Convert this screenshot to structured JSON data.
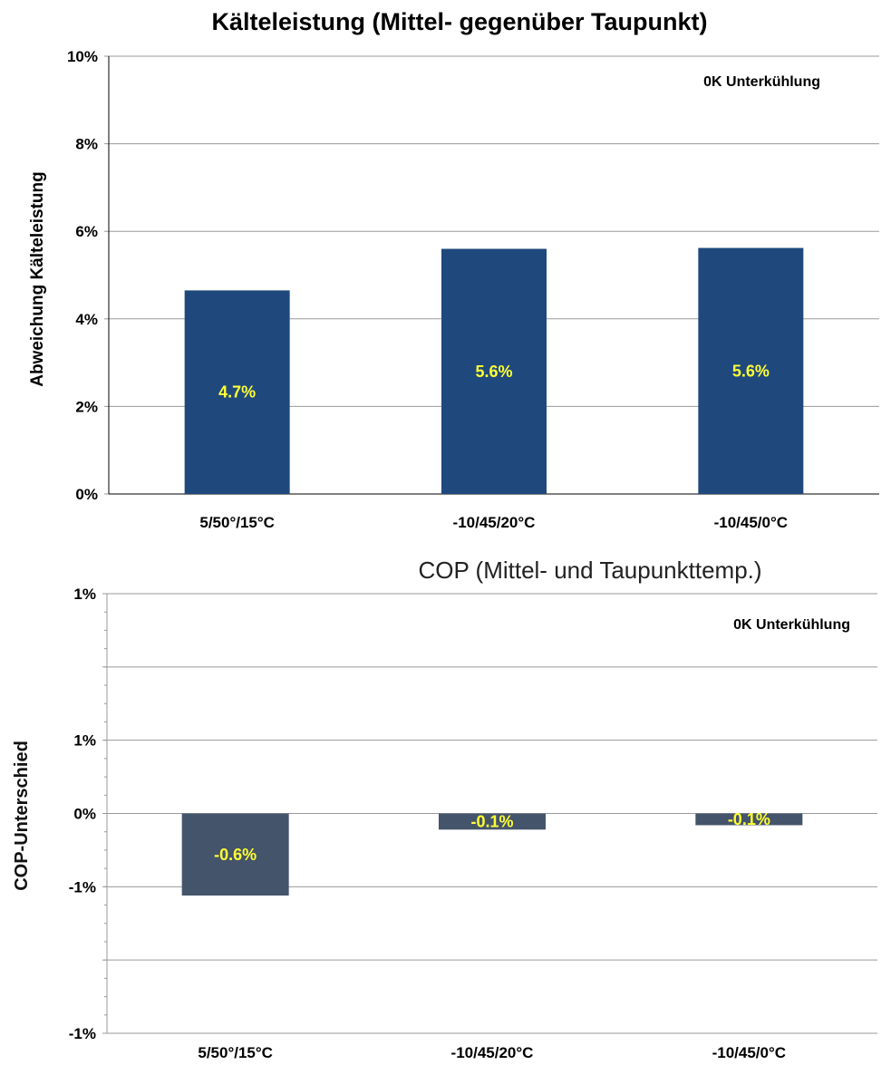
{
  "chart_data": [
    {
      "type": "bar",
      "title": "Kälteleistung (Mittel- gegenüber Taupunkt)",
      "ylabel": "Abweichung Kälteleistung",
      "xlabel": "",
      "annotation": "0K Unterkühlung",
      "categories": [
        "5/50°/15°C",
        "-10/45/20°C",
        "-10/45/0°C"
      ],
      "values": [
        4.65,
        5.6,
        5.62
      ],
      "data_labels": [
        "4.7%",
        "5.6%",
        "5.6%"
      ],
      "ylim": [
        0,
        10
      ],
      "yticks": [
        0,
        2,
        4,
        6,
        8,
        10
      ],
      "ytick_labels": [
        "0%",
        "2%",
        "4%",
        "6%",
        "8%",
        "10%"
      ],
      "grid": true,
      "bar_color": "#1f497d",
      "label_color": "#ffff33"
    },
    {
      "type": "bar",
      "title": "COP (Mittel- und Taupunkttemp.)",
      "ylabel": "COP-Unterschied",
      "xlabel": "",
      "annotation": "0K Unterkühlung",
      "categories": [
        "5/50°/15°C",
        "-10/45/20°C",
        "-10/45/0°C"
      ],
      "values": [
        -0.56,
        -0.11,
        -0.08
      ],
      "data_labels": [
        "-0.6%",
        "-0.1%",
        "-0.1%"
      ],
      "ylim": [
        -1.5,
        1.5
      ],
      "yticks": [
        -1.5,
        -1.0,
        -0.5,
        0,
        0.5,
        1.0,
        1.5
      ],
      "ytick_labels": [
        "-1%",
        "",
        "-1%",
        "0%",
        "1%",
        "",
        "1%"
      ],
      "grid": true,
      "bar_color": "#44546a",
      "label_color": "#ffff33"
    }
  ]
}
